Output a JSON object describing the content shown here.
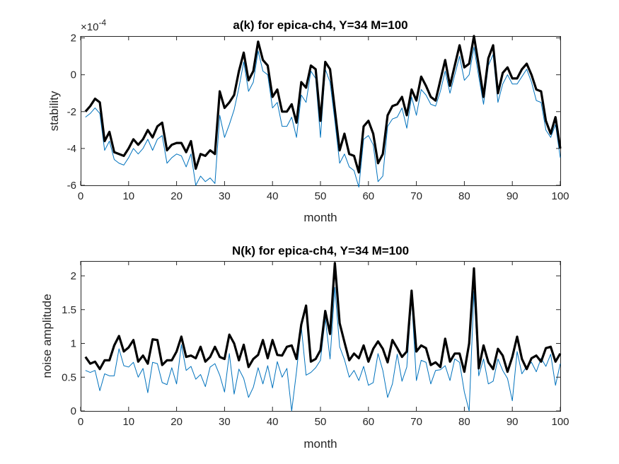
{
  "chart_data": [
    {
      "type": "line",
      "title": "a(k) for epica-ch4, Y=34 M=100",
      "xlabel": "month",
      "ylabel": "stability",
      "y_exponent_label": "×10",
      "y_exponent_power": "-4",
      "y_scale_factor": 0.0001,
      "xlim": [
        0,
        100
      ],
      "ylim": [
        -6,
        2.1
      ],
      "xticks": [
        0,
        10,
        20,
        30,
        40,
        50,
        60,
        70,
        80,
        90,
        100
      ],
      "yticks": [
        -6,
        -4,
        -2,
        0,
        2
      ],
      "grid": false,
      "series": [
        {
          "color": "#000000",
          "style": "thick",
          "x": [
            1,
            2,
            3,
            4,
            5,
            6,
            7,
            8,
            9,
            10,
            11,
            12,
            13,
            14,
            15,
            16,
            17,
            18,
            19,
            20,
            21,
            22,
            23,
            24,
            25,
            26,
            27,
            28,
            29,
            30,
            31,
            32,
            33,
            34,
            35,
            36,
            37,
            38,
            39,
            40,
            41,
            42,
            43,
            44,
            45,
            46,
            47,
            48,
            49,
            50,
            51,
            52,
            53,
            54,
            55,
            56,
            57,
            58,
            59,
            60,
            61,
            62,
            63,
            64,
            65,
            66,
            67,
            68,
            69,
            70,
            71,
            72,
            73,
            74,
            75,
            76,
            77,
            78,
            79,
            80,
            81,
            82,
            83,
            84,
            85,
            86,
            87,
            88,
            89,
            90,
            91,
            92,
            93,
            94,
            95,
            96,
            97,
            98,
            99,
            100
          ],
          "y": [
            -2.0,
            -1.7,
            -1.3,
            -1.5,
            -3.6,
            -3.1,
            -4.2,
            -4.3,
            -4.4,
            -4.0,
            -3.5,
            -3.8,
            -3.5,
            -3.0,
            -3.4,
            -2.8,
            -2.6,
            -4.1,
            -3.8,
            -3.7,
            -3.7,
            -4.2,
            -3.6,
            -5.1,
            -4.3,
            -4.4,
            -4.1,
            -4.3,
            -0.9,
            -1.8,
            -1.5,
            -1.1,
            0.2,
            1.2,
            -0.3,
            0.2,
            1.8,
            0.8,
            0.5,
            -1.2,
            -0.8,
            -2.0,
            -2.0,
            -1.6,
            -2.6,
            -0.4,
            -0.7,
            0.5,
            0.3,
            -2.5,
            0.7,
            0.3,
            -1.9,
            -4.1,
            -3.2,
            -4.3,
            -4.4,
            -5.3,
            -2.8,
            -2.5,
            -3.2,
            -4.8,
            -4.3,
            -2.2,
            -1.7,
            -1.6,
            -1.2,
            -2.2,
            -0.8,
            -1.4,
            -0.1,
            -0.6,
            -1.2,
            -1.4,
            -0.3,
            0.8,
            -0.6,
            0.5,
            1.6,
            0.4,
            0.6,
            2.1,
            0.5,
            -1.2,
            0.9,
            1.6,
            -1.0,
            0.1,
            0.4,
            -0.2,
            -0.2,
            0.3,
            0.6,
            0.0,
            -0.8,
            -0.9,
            -2.5,
            -3.2,
            -2.3,
            -4.0
          ]
        },
        {
          "color": "#0072BD",
          "style": "thin",
          "x": [
            1,
            2,
            3,
            4,
            5,
            6,
            7,
            8,
            9,
            10,
            11,
            12,
            13,
            14,
            15,
            16,
            17,
            18,
            19,
            20,
            21,
            22,
            23,
            24,
            25,
            26,
            27,
            28,
            29,
            30,
            31,
            32,
            33,
            34,
            35,
            36,
            37,
            38,
            39,
            40,
            41,
            42,
            43,
            44,
            45,
            46,
            47,
            48,
            49,
            50,
            51,
            52,
            53,
            54,
            55,
            56,
            57,
            58,
            59,
            60,
            61,
            62,
            63,
            64,
            65,
            66,
            67,
            68,
            69,
            70,
            71,
            72,
            73,
            74,
            75,
            76,
            77,
            78,
            79,
            80,
            81,
            82,
            83,
            84,
            85,
            86,
            87,
            88,
            89,
            90,
            91,
            92,
            93,
            94,
            95,
            96,
            97,
            98,
            99,
            100
          ],
          "y": [
            -2.3,
            -2.1,
            -1.8,
            -2.1,
            -4.1,
            -3.6,
            -4.6,
            -4.8,
            -4.9,
            -4.5,
            -4.0,
            -4.3,
            -4.0,
            -3.5,
            -4.1,
            -3.5,
            -3.3,
            -4.8,
            -4.5,
            -4.3,
            -4.4,
            -5.0,
            -4.3,
            -6.0,
            -5.5,
            -5.8,
            -5.6,
            -5.9,
            -2.2,
            -3.4,
            -2.7,
            -1.9,
            -0.7,
            0.7,
            -0.9,
            -0.4,
            1.3,
            0.2,
            0.0,
            -1.8,
            -1.5,
            -2.8,
            -2.8,
            -2.3,
            -3.4,
            -1.1,
            -1.5,
            0.2,
            -0.2,
            -3.4,
            0.3,
            -0.4,
            -2.5,
            -4.8,
            -4.3,
            -5.0,
            -5.2,
            -6.1,
            -3.5,
            -3.3,
            -3.8,
            -5.8,
            -5.5,
            -2.8,
            -2.4,
            -2.3,
            -1.8,
            -2.9,
            -1.2,
            -2.2,
            -0.8,
            -1.1,
            -1.6,
            -1.7,
            -0.9,
            0.2,
            -1.0,
            0.0,
            1.0,
            -0.3,
            0.0,
            1.5,
            -0.1,
            -1.6,
            0.5,
            1.1,
            -1.5,
            -0.5,
            0.0,
            -0.5,
            -0.5,
            -0.1,
            0.3,
            -0.4,
            -1.4,
            -1.5,
            -3.0,
            -3.4,
            -2.7,
            -4.5
          ]
        }
      ]
    },
    {
      "type": "line",
      "title": "N(k) for epica-ch4, Y=34 M=100",
      "xlabel": "month",
      "ylabel": "noise amplitude",
      "xlim": [
        0,
        100
      ],
      "ylim": [
        0,
        2.22
      ],
      "xticks": [
        0,
        10,
        20,
        30,
        40,
        50,
        60,
        70,
        80,
        90,
        100
      ],
      "yticks": [
        0,
        0.5,
        1,
        1.5,
        2
      ],
      "ytick_labels": [
        "0",
        "0.5",
        "1",
        "1.5",
        "2"
      ],
      "grid": false,
      "series": [
        {
          "color": "#000000",
          "style": "thick",
          "x": [
            1,
            2,
            3,
            4,
            5,
            6,
            7,
            8,
            9,
            10,
            11,
            12,
            13,
            14,
            15,
            16,
            17,
            18,
            19,
            20,
            21,
            22,
            23,
            24,
            25,
            26,
            27,
            28,
            29,
            30,
            31,
            32,
            33,
            34,
            35,
            36,
            37,
            38,
            39,
            40,
            41,
            42,
            43,
            44,
            45,
            46,
            47,
            48,
            49,
            50,
            51,
            52,
            53,
            54,
            55,
            56,
            57,
            58,
            59,
            60,
            61,
            62,
            63,
            64,
            65,
            66,
            67,
            68,
            69,
            70,
            71,
            72,
            73,
            74,
            75,
            76,
            77,
            78,
            79,
            80,
            81,
            82,
            83,
            84,
            85,
            86,
            87,
            88,
            89,
            90,
            91,
            92,
            93,
            94,
            95,
            96,
            97,
            98,
            99,
            100
          ],
          "y": [
            0.8,
            0.7,
            0.73,
            0.62,
            0.75,
            0.75,
            0.97,
            1.11,
            0.88,
            0.94,
            1.05,
            0.73,
            0.82,
            0.7,
            1.06,
            1.05,
            0.68,
            0.75,
            0.75,
            0.88,
            1.1,
            0.8,
            0.82,
            0.78,
            0.95,
            0.73,
            0.8,
            0.95,
            0.8,
            0.77,
            1.13,
            1.0,
            0.75,
            0.98,
            0.65,
            0.77,
            0.83,
            1.05,
            0.78,
            1.05,
            0.83,
            0.82,
            0.95,
            0.97,
            0.77,
            1.28,
            1.56,
            0.73,
            0.77,
            0.9,
            1.48,
            1.14,
            2.19,
            1.3,
            1.02,
            0.75,
            0.85,
            0.78,
            0.97,
            0.73,
            0.92,
            1.03,
            0.92,
            0.72,
            1.05,
            0.93,
            0.8,
            0.88,
            1.78,
            0.88,
            0.97,
            0.93,
            0.68,
            0.72,
            0.65,
            1.07,
            0.73,
            0.85,
            0.85,
            0.58,
            1.0,
            2.11,
            0.63,
            0.97,
            0.72,
            0.62,
            0.92,
            0.82,
            0.58,
            0.8,
            1.1,
            0.77,
            0.62,
            0.78,
            0.82,
            0.73,
            0.93,
            0.95,
            0.73,
            0.85
          ]
        },
        {
          "color": "#0072BD",
          "style": "thin",
          "x": [
            1,
            2,
            3,
            4,
            5,
            6,
            7,
            8,
            9,
            10,
            11,
            12,
            13,
            14,
            15,
            16,
            17,
            18,
            19,
            20,
            21,
            22,
            23,
            24,
            25,
            26,
            27,
            28,
            29,
            30,
            31,
            32,
            33,
            34,
            35,
            36,
            37,
            38,
            39,
            40,
            41,
            42,
            43,
            44,
            45,
            46,
            47,
            48,
            49,
            50,
            51,
            52,
            53,
            54,
            55,
            56,
            57,
            58,
            59,
            60,
            61,
            62,
            63,
            64,
            65,
            66,
            67,
            68,
            69,
            70,
            71,
            72,
            73,
            74,
            75,
            76,
            77,
            78,
            79,
            80,
            81,
            82,
            83,
            84,
            85,
            86,
            87,
            88,
            89,
            90,
            91,
            92,
            93,
            94,
            95,
            96,
            97,
            98,
            99,
            100
          ],
          "y": [
            0.6,
            0.57,
            0.6,
            0.3,
            0.55,
            0.52,
            0.52,
            0.92,
            0.67,
            0.65,
            0.72,
            0.5,
            0.63,
            0.27,
            0.72,
            0.7,
            0.42,
            0.39,
            0.64,
            0.4,
            0.98,
            0.6,
            0.66,
            0.47,
            0.54,
            0.36,
            0.65,
            0.7,
            0.53,
            0.28,
            0.85,
            0.25,
            0.62,
            0.48,
            0.2,
            0.35,
            0.64,
            0.4,
            0.67,
            0.34,
            0.73,
            0.5,
            0.63,
            0.0,
            0.58,
            1.25,
            0.53,
            0.57,
            0.64,
            0.75,
            1.37,
            0.77,
            1.83,
            0.95,
            0.76,
            0.5,
            0.6,
            0.45,
            0.66,
            0.38,
            0.42,
            0.85,
            0.6,
            0.2,
            0.4,
            0.84,
            0.44,
            0.65,
            1.67,
            0.45,
            0.75,
            0.72,
            0.4,
            0.6,
            0.61,
            0.67,
            0.45,
            0.77,
            0.72,
            0.28,
            0.0,
            1.77,
            0.52,
            0.77,
            0.4,
            0.44,
            0.77,
            0.6,
            0.48,
            0.15,
            0.88,
            0.55,
            0.66,
            0.72,
            0.58,
            0.78,
            0.66,
            0.84,
            0.38,
            0.7
          ]
        }
      ]
    }
  ]
}
